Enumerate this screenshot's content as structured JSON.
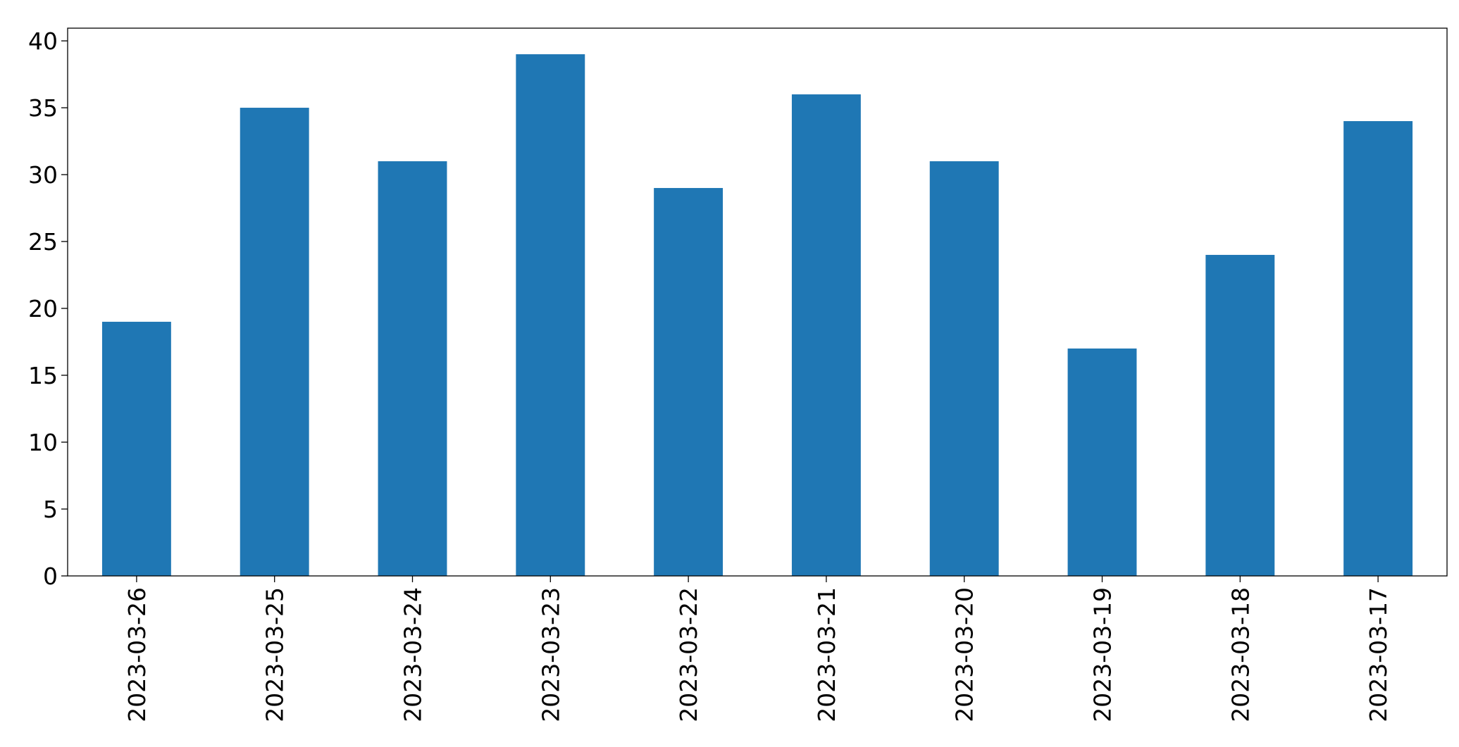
{
  "chart_data": {
    "type": "bar",
    "categories": [
      "2023-03-26",
      "2023-03-25",
      "2023-03-24",
      "2023-03-23",
      "2023-03-22",
      "2023-03-21",
      "2023-03-20",
      "2023-03-19",
      "2023-03-18",
      "2023-03-17"
    ],
    "values": [
      19,
      35,
      31,
      39,
      29,
      36,
      31,
      17,
      24,
      34
    ],
    "color": "#1f77b4",
    "ylim": [
      0,
      40.95
    ],
    "yticks": [
      0,
      5,
      10,
      15,
      20,
      25,
      30,
      35,
      40
    ],
    "grid": false
  }
}
